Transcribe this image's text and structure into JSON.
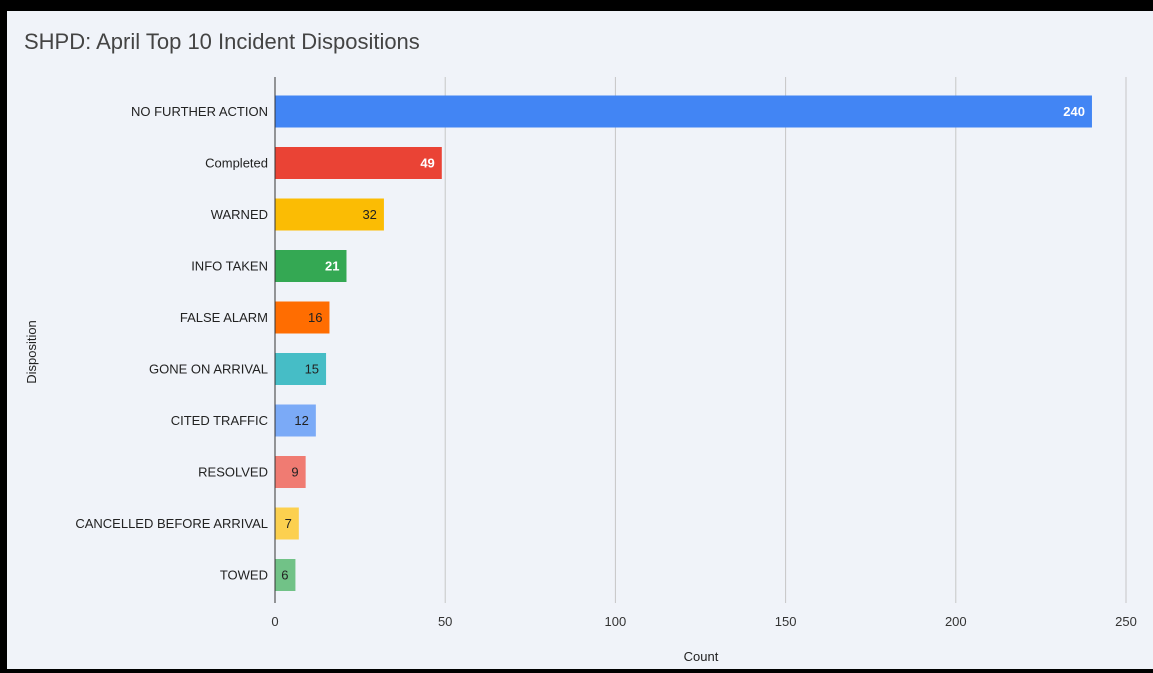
{
  "chart_data": {
    "type": "bar",
    "orientation": "horizontal",
    "title": "SHPD: April Top 10 Incident Dispositions",
    "xlabel": "Count",
    "ylabel": "Disposition",
    "xlim": [
      0,
      250
    ],
    "x_ticks": [
      0,
      50,
      100,
      150,
      200,
      250
    ],
    "grid": true,
    "categories": [
      "NO FURTHER ACTION",
      "Completed",
      "WARNED",
      "INFO TAKEN",
      "FALSE ALARM",
      "GONE ON ARRIVAL",
      "CITED TRAFFIC",
      "RESOLVED",
      "CANCELLED BEFORE ARRIVAL",
      "TOWED"
    ],
    "values": [
      240,
      49,
      32,
      21,
      16,
      15,
      12,
      9,
      7,
      6
    ],
    "colors": [
      "#4285f4",
      "#ea4335",
      "#fbbc04",
      "#34a853",
      "#ff6d01",
      "#46bdc6",
      "#7baaf7",
      "#f07b72",
      "#fcd04f",
      "#71c287"
    ],
    "data_label_colors": [
      "#ffffff",
      "#ffffff",
      "#222222",
      "#ffffff",
      "#222222",
      "#222222",
      "#222222",
      "#222222",
      "#222222",
      "#222222"
    ],
    "data_labels": true
  }
}
